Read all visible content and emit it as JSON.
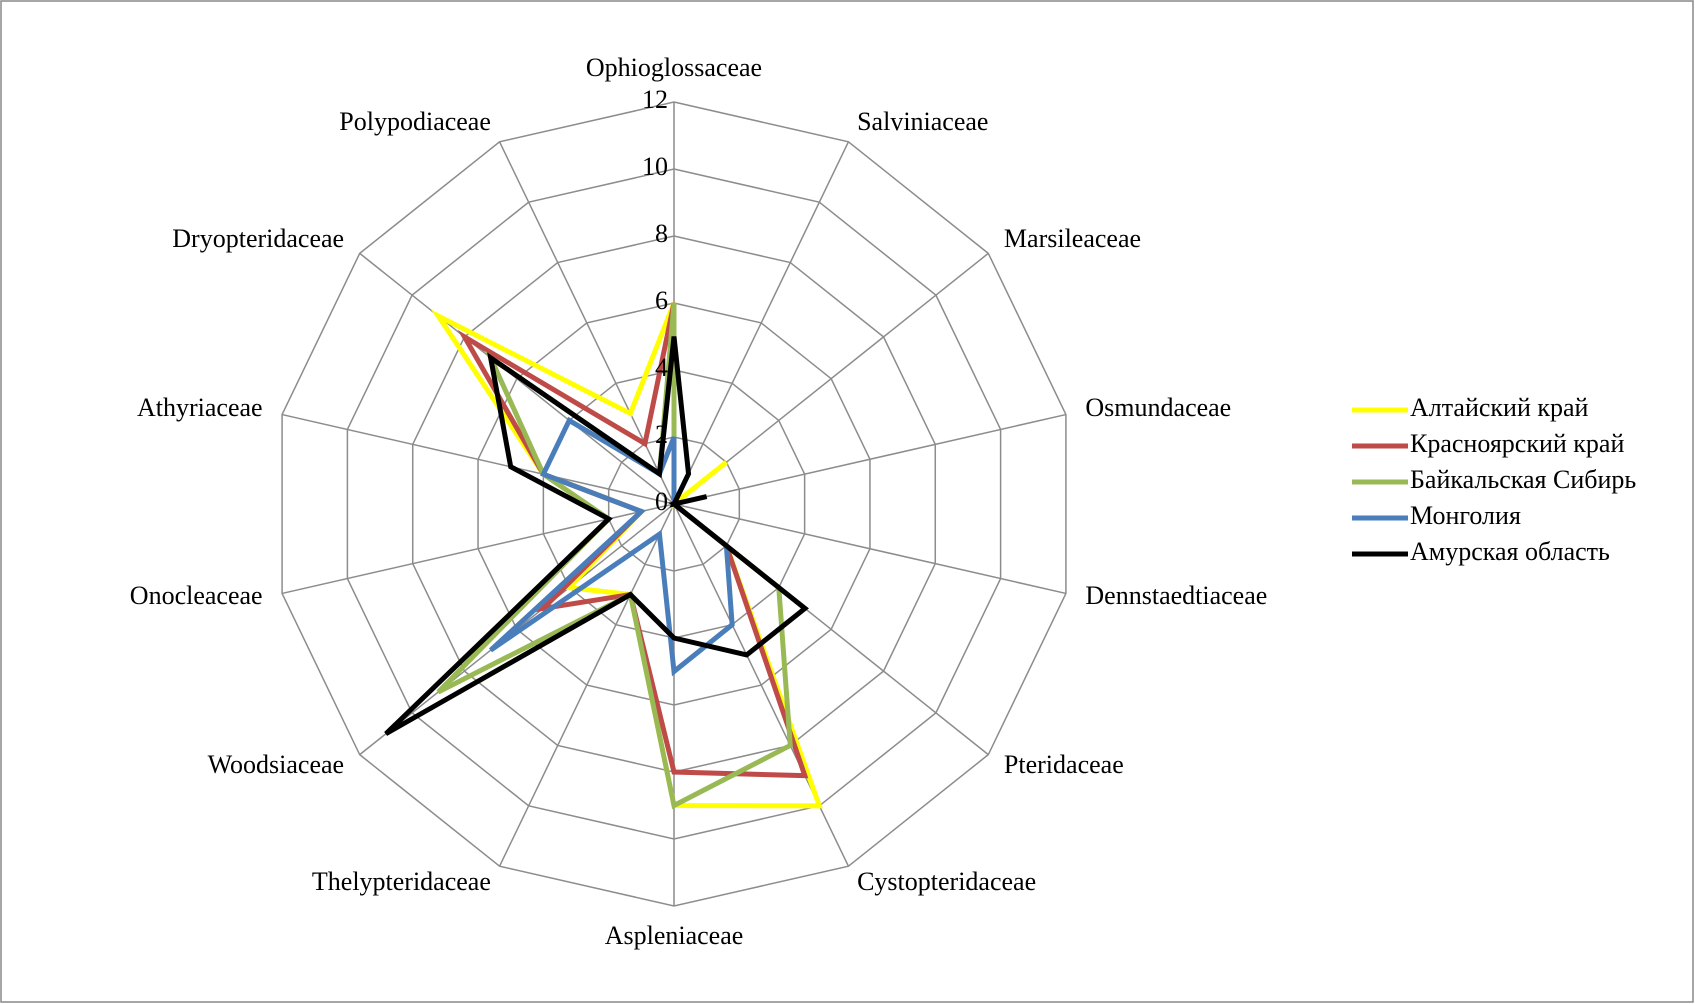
{
  "chart_data": {
    "type": "radar",
    "categories": [
      "Ophioglossaceae",
      "Salviniaceae",
      "Marsileaceae",
      "Osmundaceae",
      "Dennstaedtiaceae",
      "Pteridaceae",
      "Cystopteridaceae",
      "Aspleniaceae",
      "Thelypteridaceae",
      "Woodsiaceae",
      "Onocleaceae",
      "Athyriaceae",
      "Dryopteridaceae",
      "Polypodiaceae"
    ],
    "series": [
      {
        "name": "Алтайский край",
        "color": "#ffff00",
        "values": [
          6,
          0,
          2,
          0,
          0,
          2,
          10,
          9,
          3,
          4,
          1,
          4,
          9,
          3
        ]
      },
      {
        "name": "Красноярский край",
        "color": "#be4b48",
        "values": [
          6,
          0,
          0,
          0,
          0,
          2,
          9,
          8,
          3,
          5,
          1,
          4,
          8,
          2
        ]
      },
      {
        "name": "Байкальская Сибирь",
        "color": "#98b954",
        "values": [
          6,
          0,
          0,
          0,
          0,
          4,
          8,
          9,
          3,
          9,
          2,
          4,
          7,
          1
        ]
      },
      {
        "name": "Монголия",
        "color": "#4a7ebb",
        "values": [
          2,
          0,
          0,
          0,
          0,
          2,
          4,
          5,
          1,
          7,
          1,
          4,
          4,
          1
        ]
      },
      {
        "name": "Амурская область",
        "color": "#000000",
        "values": [
          5,
          1,
          0,
          1,
          0,
          5,
          5,
          4,
          3,
          11,
          2,
          5,
          7,
          1
        ]
      }
    ],
    "rlim": [
      0,
      12
    ],
    "rticks": [
      0,
      2,
      4,
      6,
      8,
      10,
      12
    ],
    "grid": true,
    "legend": "right"
  }
}
